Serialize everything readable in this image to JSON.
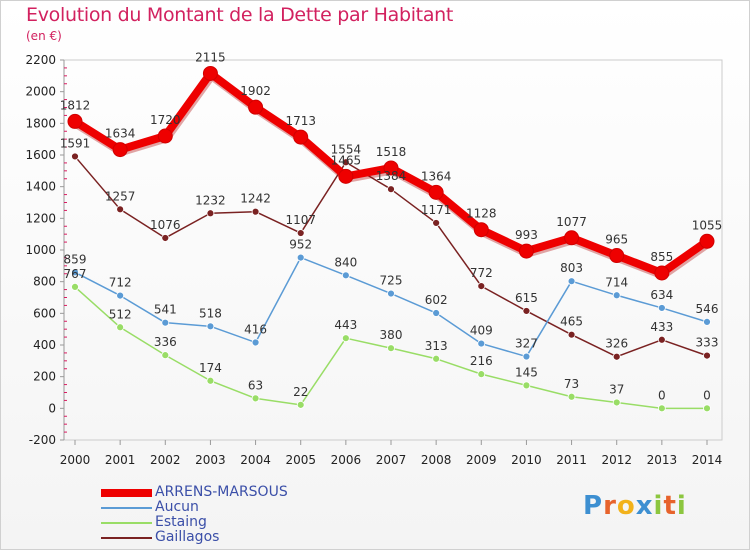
{
  "header": {
    "title": "Evolution du Montant de la Dette par Habitant",
    "subtitle": "(en €)"
  },
  "logo": {
    "text": "Proxiti",
    "letters": [
      {
        "ch": "P",
        "color": "#3d8fd1"
      },
      {
        "ch": "r",
        "color": "#e7632c"
      },
      {
        "ch": "o",
        "color": "#f2b21b"
      },
      {
        "ch": "x",
        "color": "#3d8fd1"
      },
      {
        "ch": "i",
        "color": "#8cc63f"
      },
      {
        "ch": "t",
        "color": "#e7632c"
      },
      {
        "ch": "i",
        "color": "#8cc63f"
      }
    ]
  },
  "chart_data": {
    "type": "line",
    "x": [
      2000,
      2001,
      2002,
      2003,
      2004,
      2005,
      2006,
      2007,
      2008,
      2009,
      2010,
      2011,
      2012,
      2013,
      2014
    ],
    "ylim": [
      -200,
      2200
    ],
    "yticks": [
      -200,
      0,
      200,
      400,
      600,
      800,
      1000,
      1200,
      1400,
      1600,
      1800,
      2000,
      2200
    ],
    "grid": false,
    "legend_position": "bottom-left",
    "series": [
      {
        "name": "ARRENS-MARSOUS",
        "color": "#ee0000",
        "values": [
          1812,
          1634,
          1720,
          2115,
          1902,
          1713,
          1465,
          1518,
          1364,
          1128,
          993,
          1077,
          965,
          855,
          1055
        ],
        "labels": [
          "1812",
          "1634",
          "1720",
          "2115",
          "1902",
          "1713",
          "1465",
          "1518",
          "1364",
          "1128",
          "993",
          "1077",
          "965",
          "855",
          "1055"
        ],
        "emphasis": true
      },
      {
        "name": "Aucun",
        "color": "#5b9bd5",
        "values": [
          859,
          712,
          541,
          518,
          416,
          952,
          840,
          725,
          602,
          409,
          327,
          803,
          714,
          634,
          546
        ],
        "labels": [
          "859",
          "712",
          "541",
          "518",
          "416",
          "952",
          "840",
          "725",
          "602",
          "409",
          "327",
          "803",
          "714",
          "634",
          "546"
        ]
      },
      {
        "name": "Estaing",
        "color": "#99dd66",
        "values": [
          767,
          512,
          336,
          174,
          63,
          22,
          443,
          380,
          313,
          216,
          145,
          73,
          37,
          0,
          0
        ],
        "labels": [
          "767",
          "512",
          "336",
          "174",
          "63",
          "22",
          "443",
          "380",
          "313",
          "216",
          "145",
          "73",
          "37",
          "0",
          "0"
        ]
      },
      {
        "name": "Gaillagos",
        "color": "#7a2222",
        "values": [
          1591,
          1257,
          1076,
          1232,
          1242,
          1107,
          1554,
          1384,
          1171,
          772,
          615,
          465,
          326,
          433,
          333
        ],
        "labels": [
          "1591",
          "1257",
          "1076",
          "1232",
          "1242",
          "1107",
          "1554",
          "1384",
          "1171",
          "772",
          "615",
          "465",
          "326",
          "433",
          "333"
        ]
      }
    ]
  }
}
